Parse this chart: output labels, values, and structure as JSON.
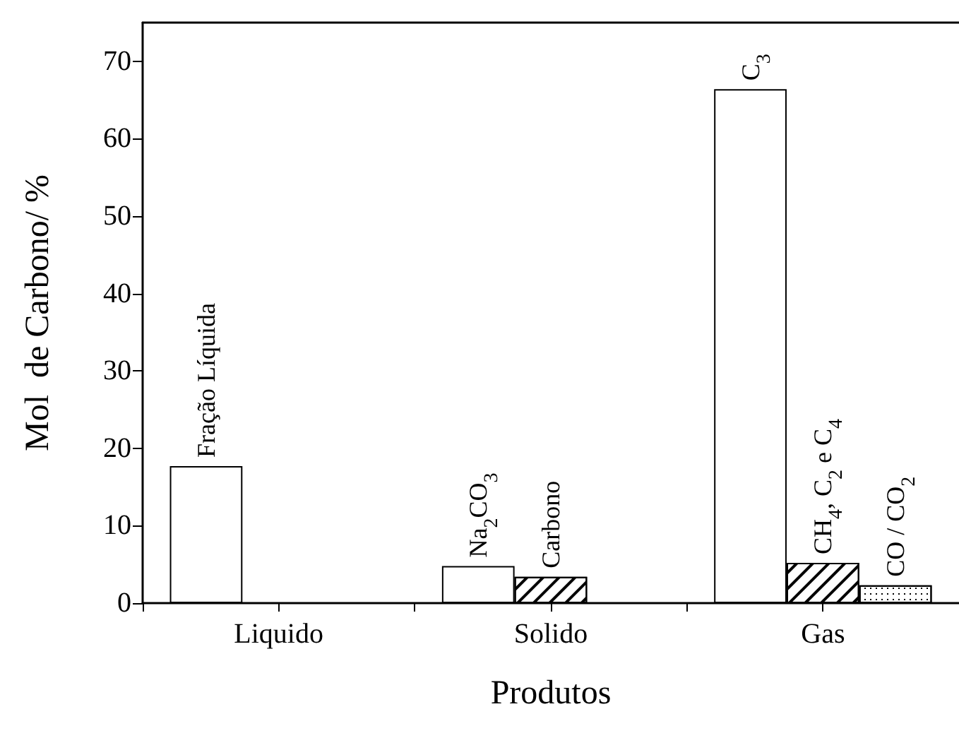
{
  "chart_data": {
    "type": "bar",
    "xlabel": "Produtos",
    "ylabel": "Mol  de Carbono/ %",
    "categories": [
      "Liquido",
      "Solido",
      "Gas"
    ],
    "series": [
      {
        "color": "#ffffff",
        "values": [
          17.7,
          4.8,
          66.4
        ]
      },
      {
        "color": "#ffffff",
        "values": [
          null,
          3.4,
          5.2
        ]
      },
      {
        "color": "#ffffff",
        "values": [
          null,
          null,
          2.3
        ]
      }
    ],
    "annotations": [
      "Fração Líquida",
      "Na$_{2}$CO$_{3}$",
      "Carbono",
      "C$_{3}$",
      "CH$_{4}$, C$_{2}$ e C$_{4}$",
      "CO / CO$_{2}$"
    ],
    "ylim": [
      0,
      75
    ],
    "yticks": [
      0,
      10,
      20,
      30,
      40,
      50,
      60,
      70
    ],
    "grid": false
  }
}
